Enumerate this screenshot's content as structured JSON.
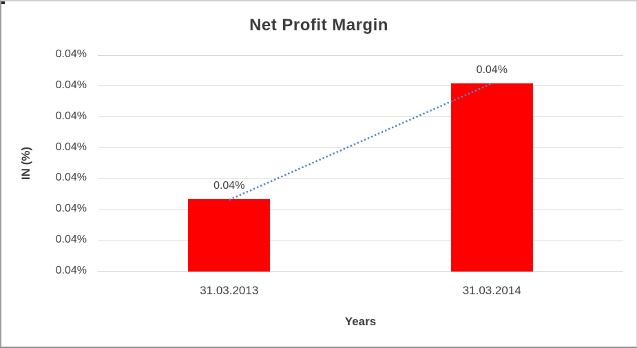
{
  "frame": {
    "background": "#ffffff",
    "border_color": "#9c9c9c"
  },
  "chart_data": {
    "type": "bar",
    "title": "Net Profit Margin",
    "xlabel": "Years",
    "ylabel": "IN (%)",
    "categories": [
      "31.03.2013",
      "31.03.2014"
    ],
    "series": [
      {
        "name": "Net Profit Margin",
        "values": [
          0.04,
          0.04
        ]
      }
    ],
    "data_labels": [
      "0.04%",
      "0.04%"
    ],
    "y_tick_labels": [
      "0.04%",
      "0.04%",
      "0.04%",
      "0.04%",
      "0.04%",
      "0.04%",
      "0.04%",
      "0.04%"
    ],
    "value_fractions": [
      0.334,
      0.869
    ],
    "bar_color": "#ff0000",
    "text_color": "#404040",
    "gridline_color": "#d9d9d9",
    "gridlines": true,
    "legend": "none",
    "trendline": {
      "type": "linear",
      "style": "dotted",
      "color": "#4f86c6"
    }
  }
}
